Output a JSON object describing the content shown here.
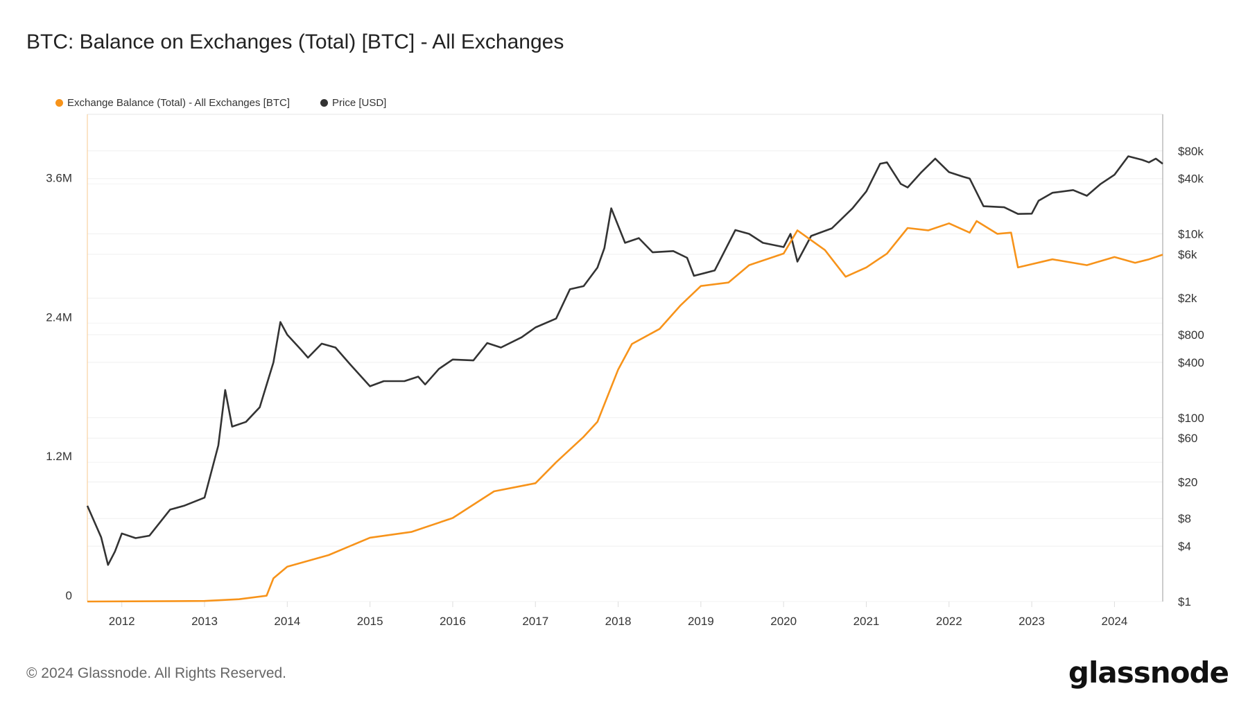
{
  "chart_data": {
    "type": "line",
    "title": "BTC: Balance on Exchanges (Total) [BTC] - All Exchanges",
    "grid": true,
    "legend_placement": "top-left",
    "x_ticks": [
      "2012",
      "2013",
      "2014",
      "2015",
      "2016",
      "2017",
      "2018",
      "2019",
      "2020",
      "2021",
      "2022",
      "2023",
      "2024"
    ],
    "xlim": [
      "2011-08",
      "2024-08"
    ],
    "y_left": {
      "ticks": [
        {
          "v": 0,
          "label": "0"
        },
        {
          "v": 1200000,
          "label": "1.2M"
        },
        {
          "v": 2400000,
          "label": "2.4M"
        },
        {
          "v": 3600000,
          "label": "3.6M"
        }
      ],
      "ylim": [
        0,
        4200000
      ],
      "scale": "linear"
    },
    "y_right": {
      "ticks": [
        {
          "v": 1,
          "label": "$1"
        },
        {
          "v": 4,
          "label": "$4"
        },
        {
          "v": 8,
          "label": "$8"
        },
        {
          "v": 20,
          "label": "$20"
        },
        {
          "v": 60,
          "label": "$60"
        },
        {
          "v": 100,
          "label": "$100"
        },
        {
          "v": 400,
          "label": "$400"
        },
        {
          "v": 800,
          "label": "$800"
        },
        {
          "v": 2000,
          "label": "$2k"
        },
        {
          "v": 6000,
          "label": "$6k"
        },
        {
          "v": 10000,
          "label": "$10k"
        },
        {
          "v": 40000,
          "label": "$40k"
        },
        {
          "v": 80000,
          "label": "$80k"
        }
      ],
      "ylim": [
        1,
        200000
      ],
      "scale": "log"
    },
    "series": [
      {
        "name": "Exchange Balance (Total) - All Exchanges [BTC]",
        "axis": "left",
        "color": "#f7931a",
        "points": [
          [
            "2011-08",
            0
          ],
          [
            "2013-01",
            5000
          ],
          [
            "2013-06",
            20000
          ],
          [
            "2013-10",
            50000
          ],
          [
            "2013-11",
            200000
          ],
          [
            "2014-01",
            300000
          ],
          [
            "2014-07",
            400000
          ],
          [
            "2015-01",
            550000
          ],
          [
            "2015-07",
            600000
          ],
          [
            "2016-01",
            720000
          ],
          [
            "2016-07",
            950000
          ],
          [
            "2017-01",
            1020000
          ],
          [
            "2017-04",
            1200000
          ],
          [
            "2017-08",
            1420000
          ],
          [
            "2017-10",
            1550000
          ],
          [
            "2018-01",
            2000000
          ],
          [
            "2018-03",
            2220000
          ],
          [
            "2018-07",
            2350000
          ],
          [
            "2018-10",
            2550000
          ],
          [
            "2019-01",
            2720000
          ],
          [
            "2019-05",
            2750000
          ],
          [
            "2019-08",
            2900000
          ],
          [
            "2020-01",
            3000000
          ],
          [
            "2020-03",
            3200000
          ],
          [
            "2020-07",
            3030000
          ],
          [
            "2020-10",
            2800000
          ],
          [
            "2021-01",
            2880000
          ],
          [
            "2021-04",
            3000000
          ],
          [
            "2021-07",
            3220000
          ],
          [
            "2021-10",
            3200000
          ],
          [
            "2022-01",
            3260000
          ],
          [
            "2022-04",
            3180000
          ],
          [
            "2022-05",
            3280000
          ],
          [
            "2022-08",
            3170000
          ],
          [
            "2022-10",
            3180000
          ],
          [
            "2022-11",
            2880000
          ],
          [
            "2023-04",
            2950000
          ],
          [
            "2023-09",
            2900000
          ],
          [
            "2024-01",
            2970000
          ],
          [
            "2024-04",
            2920000
          ],
          [
            "2024-06",
            2950000
          ],
          [
            "2024-08",
            2990000
          ]
        ]
      },
      {
        "name": "Price [USD]",
        "axis": "right",
        "color": "#333333",
        "points": [
          [
            "2011-08",
            11
          ],
          [
            "2011-10",
            5
          ],
          [
            "2011-11",
            2.5
          ],
          [
            "2011-12",
            3.5
          ],
          [
            "2012-01",
            5.5
          ],
          [
            "2012-03",
            4.9
          ],
          [
            "2012-05",
            5.2
          ],
          [
            "2012-08",
            10
          ],
          [
            "2012-10",
            11
          ],
          [
            "2013-01",
            13.5
          ],
          [
            "2013-03",
            50
          ],
          [
            "2013-04",
            200
          ],
          [
            "2013-05",
            80
          ],
          [
            "2013-07",
            90
          ],
          [
            "2013-09",
            130
          ],
          [
            "2013-11",
            400
          ],
          [
            "2013-12",
            1100
          ],
          [
            "2014-01",
            800
          ],
          [
            "2014-03",
            550
          ],
          [
            "2014-04",
            450
          ],
          [
            "2014-06",
            640
          ],
          [
            "2014-08",
            580
          ],
          [
            "2014-10",
            390
          ],
          [
            "2015-01",
            220
          ],
          [
            "2015-03",
            250
          ],
          [
            "2015-06",
            250
          ],
          [
            "2015-08",
            280
          ],
          [
            "2015-09",
            230
          ],
          [
            "2015-11",
            340
          ],
          [
            "2016-01",
            430
          ],
          [
            "2016-04",
            420
          ],
          [
            "2016-06",
            650
          ],
          [
            "2016-08",
            580
          ],
          [
            "2016-11",
            750
          ],
          [
            "2017-01",
            960
          ],
          [
            "2017-04",
            1200
          ],
          [
            "2017-06",
            2500
          ],
          [
            "2017-08",
            2700
          ],
          [
            "2017-10",
            4300
          ],
          [
            "2017-11",
            7000
          ],
          [
            "2017-12",
            19000
          ],
          [
            "2018-02",
            8000
          ],
          [
            "2018-04",
            9000
          ],
          [
            "2018-06",
            6300
          ],
          [
            "2018-09",
            6500
          ],
          [
            "2018-11",
            5500
          ],
          [
            "2018-12",
            3500
          ],
          [
            "2019-03",
            4000
          ],
          [
            "2019-06",
            11000
          ],
          [
            "2019-08",
            10000
          ],
          [
            "2019-10",
            8000
          ],
          [
            "2020-01",
            7200
          ],
          [
            "2020-02",
            10000
          ],
          [
            "2020-03",
            5000
          ],
          [
            "2020-05",
            9500
          ],
          [
            "2020-08",
            11500
          ],
          [
            "2020-11",
            19000
          ],
          [
            "2021-01",
            29000
          ],
          [
            "2021-03",
            58000
          ],
          [
            "2021-04",
            60000
          ],
          [
            "2021-06",
            35000
          ],
          [
            "2021-07",
            32000
          ],
          [
            "2021-09",
            47000
          ],
          [
            "2021-11",
            66000
          ],
          [
            "2022-01",
            47000
          ],
          [
            "2022-03",
            42000
          ],
          [
            "2022-04",
            40000
          ],
          [
            "2022-06",
            20000
          ],
          [
            "2022-09",
            19500
          ],
          [
            "2022-11",
            16500
          ],
          [
            "2023-01",
            16600
          ],
          [
            "2023-02",
            23000
          ],
          [
            "2023-04",
            28000
          ],
          [
            "2023-07",
            30000
          ],
          [
            "2023-09",
            26000
          ],
          [
            "2023-11",
            35000
          ],
          [
            "2024-01",
            44000
          ],
          [
            "2024-03",
            70000
          ],
          [
            "2024-05",
            64000
          ],
          [
            "2024-06",
            60000
          ],
          [
            "2024-07",
            66000
          ],
          [
            "2024-08",
            58000
          ]
        ]
      }
    ]
  },
  "footer": {
    "copyright": "© 2024 Glassnode. All Rights Reserved.",
    "logo": "glassnode"
  }
}
